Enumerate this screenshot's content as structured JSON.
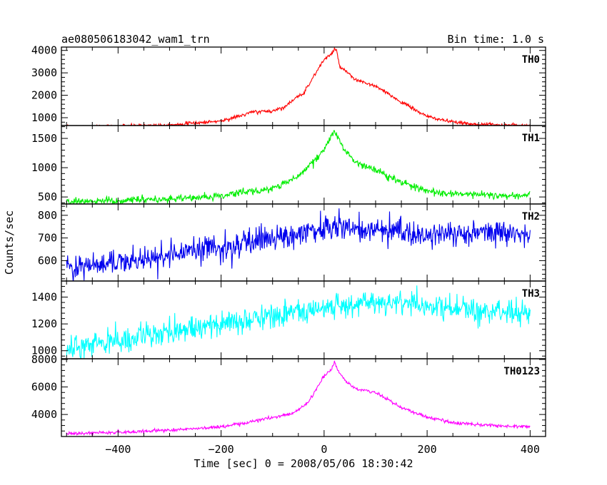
{
  "chart_data": {
    "type": "line",
    "title": "ae080506183042_wam1_trn",
    "subtitle": "Bin time: 1.0 s",
    "xlabel": "Time [sec] 0 = 2008/05/06 18:30:42",
    "ylabel": "Counts/sec",
    "xlim": [
      -510,
      430
    ],
    "x_ticks": [
      -400,
      -200,
      0,
      200,
      400
    ],
    "x_tick_labels": [
      "−400",
      "−200",
      "0",
      "200",
      "400"
    ],
    "grid": false,
    "panels": [
      {
        "name": "TH0",
        "color": "#ff0000",
        "ylim": [
          650,
          4150
        ],
        "y_ticks": [
          1000,
          2000,
          3000,
          4000
        ],
        "y_tick_labels": [
          "1000",
          "2000",
          "3000",
          "4000"
        ],
        "noise": 40,
        "x": [
          -500,
          -400,
          -300,
          -200,
          -160,
          -140,
          -100,
          -80,
          -40,
          0,
          15,
          20,
          25,
          30,
          60,
          100,
          150,
          200,
          250,
          300,
          350,
          400
        ],
        "y": [
          580,
          620,
          680,
          850,
          1100,
          1250,
          1300,
          1450,
          2100,
          3600,
          3850,
          4080,
          3900,
          3300,
          2700,
          2400,
          1700,
          1050,
          800,
          700,
          680,
          650
        ]
      },
      {
        "name": "TH1",
        "color": "#00ee00",
        "ylim": [
          380,
          1720
        ],
        "y_ticks": [
          500,
          1000,
          1500
        ],
        "y_tick_labels": [
          "500",
          "1000",
          "1500"
        ],
        "noise": 30,
        "x": [
          -500,
          -400,
          -300,
          -200,
          -150,
          -100,
          -50,
          0,
          15,
          20,
          25,
          40,
          60,
          100,
          150,
          200,
          250,
          300,
          350,
          400
        ],
        "y": [
          420,
          440,
          460,
          520,
          600,
          640,
          850,
          1300,
          1580,
          1650,
          1540,
          1300,
          1100,
          970,
          750,
          600,
          560,
          540,
          530,
          520
        ]
      },
      {
        "name": "TH2",
        "color": "#0000ee",
        "ylim": [
          510,
          850
        ],
        "y_ticks": [
          600,
          700,
          800
        ],
        "y_tick_labels": [
          "600",
          "700",
          "800"
        ],
        "noise": 28,
        "x": [
          -500,
          -400,
          -300,
          -200,
          -100,
          0,
          50,
          100,
          200,
          300,
          400
        ],
        "y": [
          565,
          590,
          625,
          660,
          700,
          750,
          745,
          735,
          725,
          720,
          720
        ]
      },
      {
        "name": "TH3",
        "color": "#00ffff",
        "ylim": [
          940,
          1520
        ],
        "y_ticks": [
          1000,
          1200,
          1400
        ],
        "y_tick_labels": [
          "1000",
          "1200",
          "1400"
        ],
        "noise": 45,
        "x": [
          -500,
          -400,
          -300,
          -200,
          -100,
          0,
          50,
          100,
          200,
          300,
          400
        ],
        "y": [
          1020,
          1070,
          1140,
          1200,
          1260,
          1320,
          1340,
          1360,
          1340,
          1300,
          1280
        ]
      },
      {
        "name": "TH0123",
        "color": "#ff00ff",
        "ylim": [
          2400,
          8050
        ],
        "y_ticks": [
          4000,
          6000,
          8000
        ],
        "y_tick_labels": [
          "4000",
          "6000",
          "8000"
        ],
        "noise": 60,
        "x": [
          -500,
          -400,
          -300,
          -200,
          -150,
          -100,
          -60,
          -30,
          0,
          15,
          20,
          25,
          40,
          60,
          100,
          150,
          200,
          250,
          300,
          350,
          400
        ],
        "y": [
          2600,
          2700,
          2850,
          3100,
          3400,
          3800,
          4100,
          4900,
          6800,
          7300,
          7800,
          7350,
          6500,
          5900,
          5600,
          4500,
          3800,
          3400,
          3250,
          3150,
          3100
        ]
      }
    ]
  }
}
